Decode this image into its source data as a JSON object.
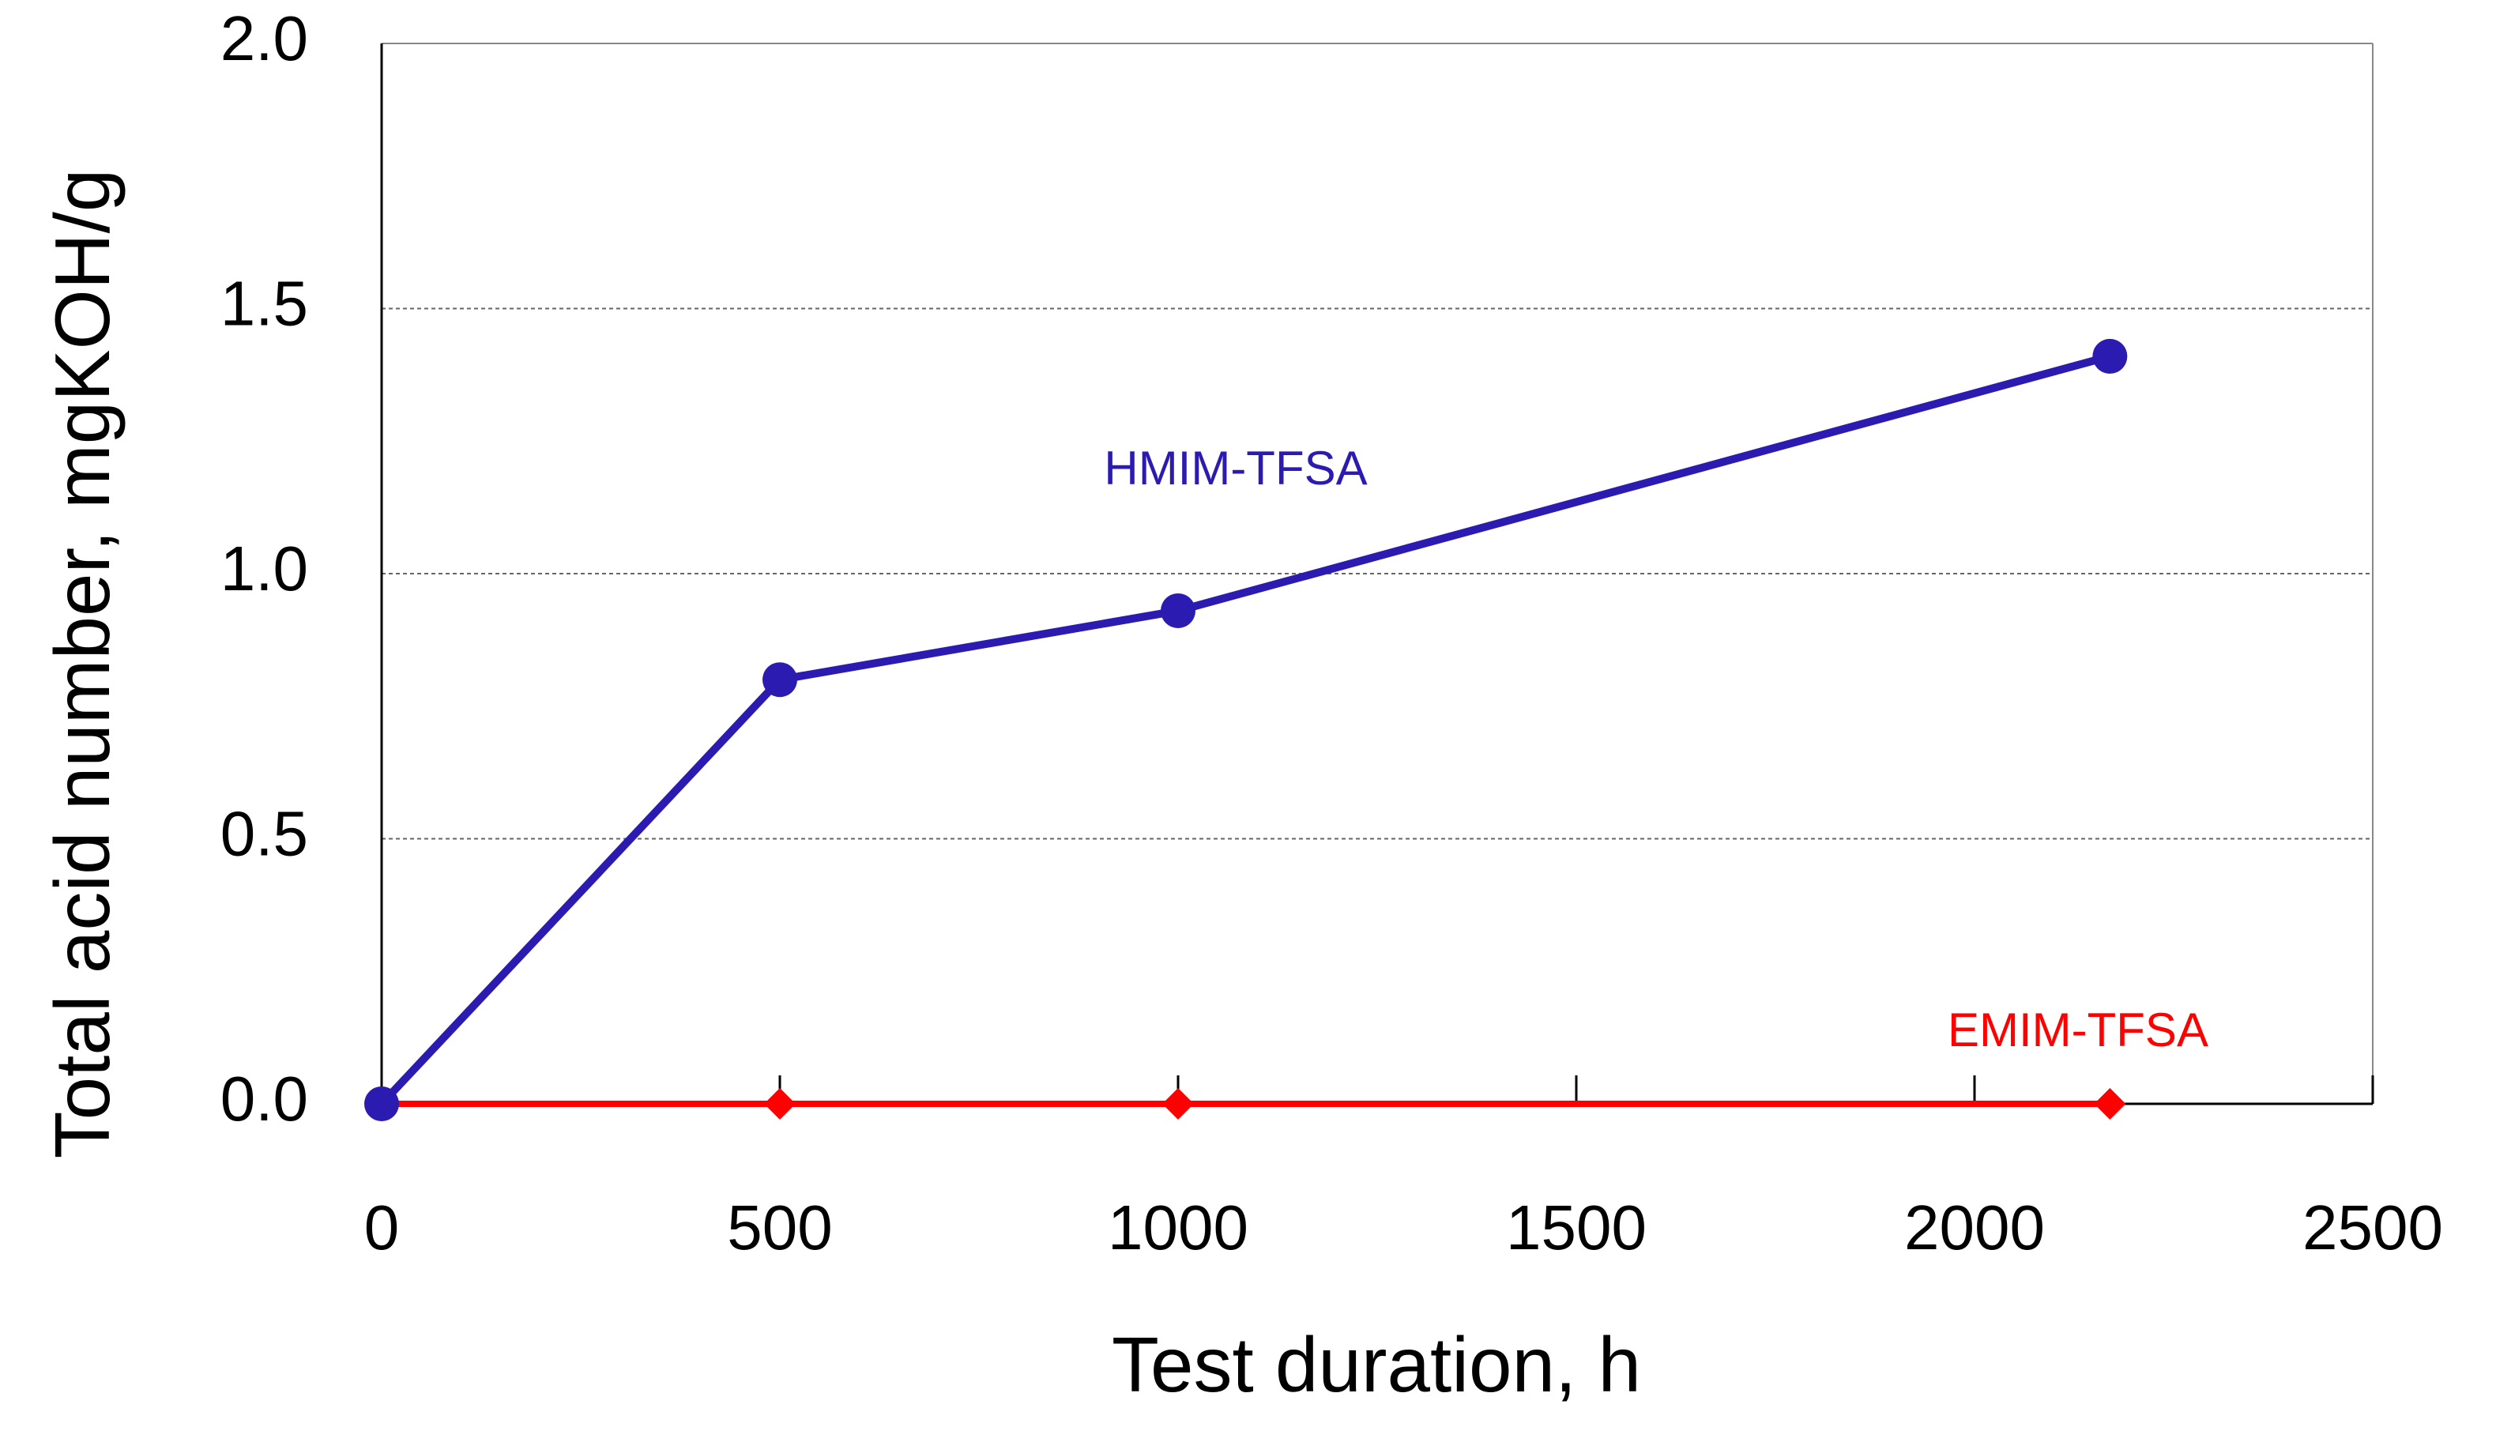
{
  "chart_data": {
    "type": "line",
    "xlabel": "Test duration, h",
    "ylabel": "Total acid number, mgKOH/g",
    "x": [
      0,
      500,
      1000,
      2170
    ],
    "series": [
      {
        "name": "HMIM-TFSA",
        "color": "#2b1bb0",
        "marker": "circle",
        "values": [
          0,
          0.8,
          0.93,
          1.41
        ]
      },
      {
        "name": "EMIM-TFSA",
        "color": "#ff0000",
        "marker": "diamond",
        "values": [
          0,
          0,
          0,
          0
        ]
      }
    ],
    "xlim": [
      0,
      2500
    ],
    "xticks": [
      0,
      500,
      1000,
      1500,
      2000,
      2500
    ],
    "ylim": [
      0,
      2.0
    ],
    "yticks": [
      {
        "value": 0,
        "label": "0.0"
      },
      0.5,
      {
        "value": 1,
        "label": "1.0"
      },
      1.5,
      {
        "value": 2,
        "label": "2.0"
      }
    ],
    "grid": true
  }
}
